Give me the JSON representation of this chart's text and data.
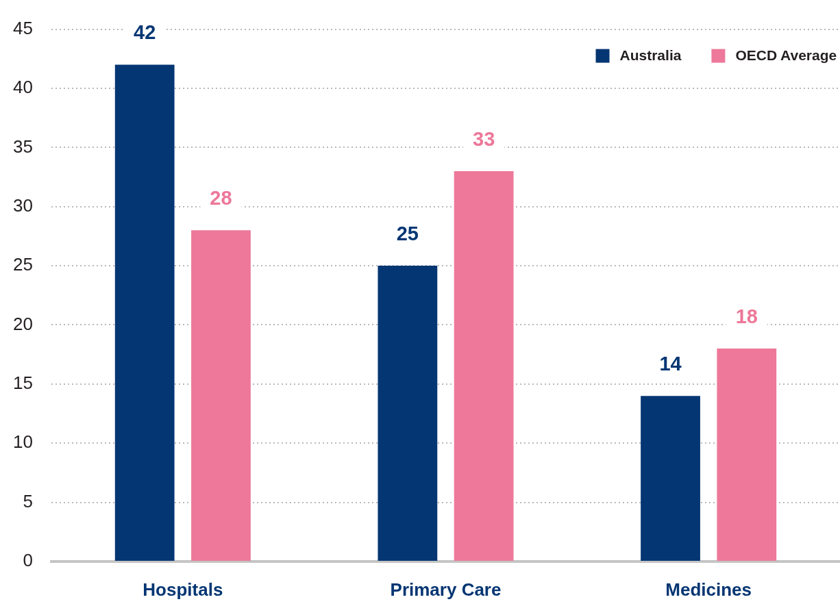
{
  "chart_data": {
    "type": "bar",
    "categories": [
      "Hospitals",
      "Primary Care",
      "Medicines"
    ],
    "series": [
      {
        "name": "Australia",
        "color": "#043673",
        "values": [
          42,
          25,
          14
        ]
      },
      {
        "name": "OECD Average",
        "color": "#ed7899",
        "values": [
          28,
          33,
          18
        ]
      }
    ],
    "ylim": [
      0,
      45
    ],
    "yticks": [
      0,
      5,
      10,
      15,
      20,
      25,
      30,
      35,
      40,
      45
    ],
    "grid": "y",
    "legend": "top right",
    "data_labels": true
  }
}
